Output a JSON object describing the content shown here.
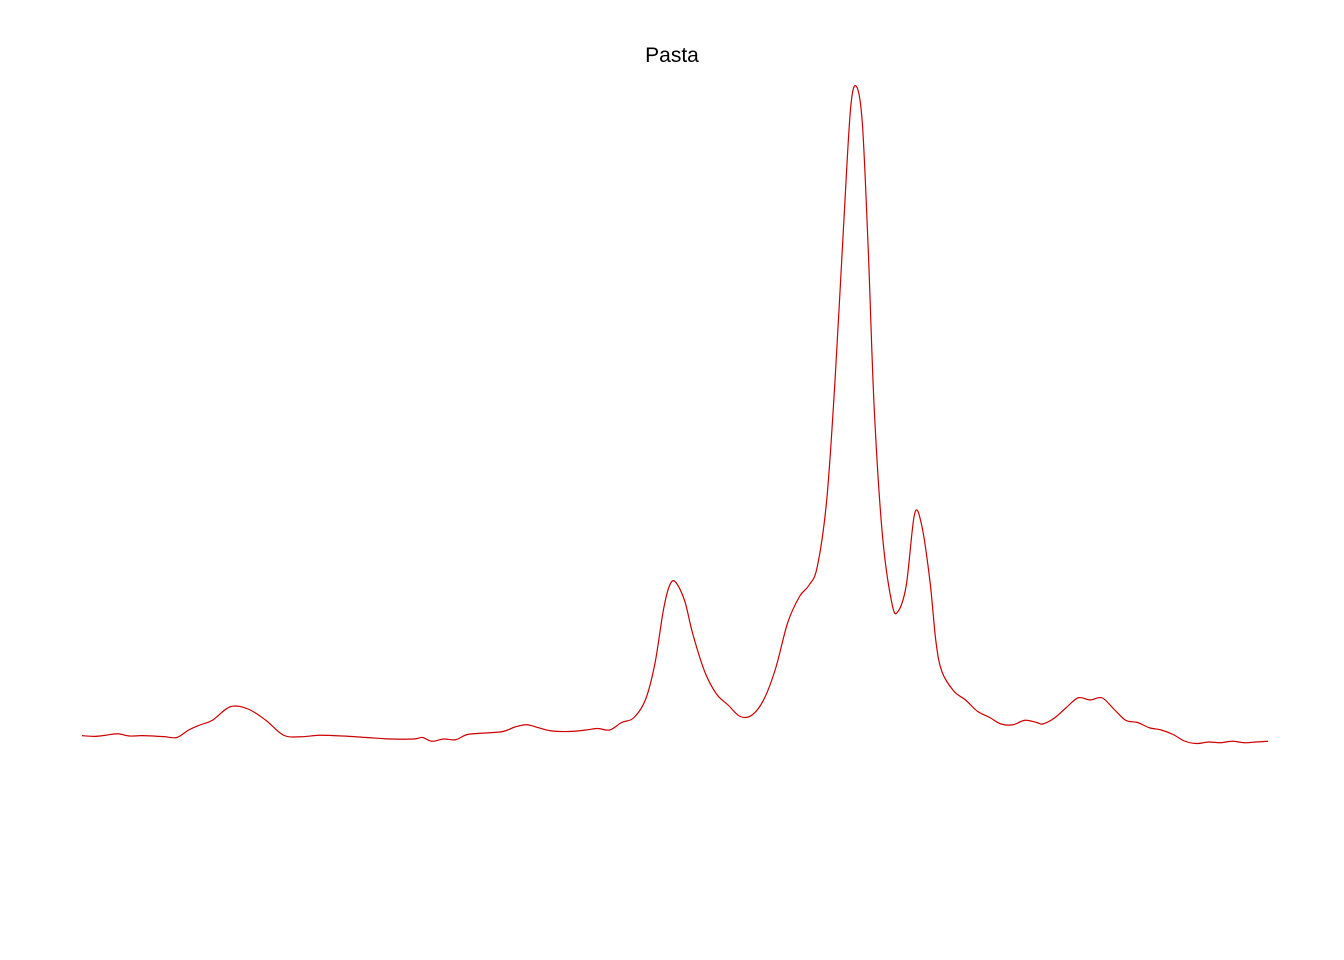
{
  "chart_data": {
    "type": "line",
    "title": "Pasta",
    "xlabel": "",
    "ylabel": "",
    "axes_visible": false,
    "grid": false,
    "legend": "none",
    "xlim": [
      0,
      100
    ],
    "ylim": [
      0,
      100
    ],
    "series": [
      {
        "color": "#cc0000",
        "points": [
          [
            0.0,
            0.45
          ],
          [
            1.0,
            0.35
          ],
          [
            2.0,
            0.5
          ],
          [
            3.0,
            0.7
          ],
          [
            4.0,
            0.4
          ],
          [
            5.0,
            0.45
          ],
          [
            6.0,
            0.4
          ],
          [
            7.0,
            0.3
          ],
          [
            8.0,
            0.2
          ],
          [
            9.0,
            1.2
          ],
          [
            10.0,
            1.9
          ],
          [
            11.0,
            2.5
          ],
          [
            12.5,
            4.3
          ],
          [
            14.0,
            4.0
          ],
          [
            15.5,
            2.5
          ],
          [
            17.0,
            0.5
          ],
          [
            18.5,
            0.3
          ],
          [
            20.0,
            0.5
          ],
          [
            22.0,
            0.4
          ],
          [
            24.0,
            0.2
          ],
          [
            26.0,
            0.0
          ],
          [
            28.0,
            0.0
          ],
          [
            28.7,
            0.2
          ],
          [
            29.5,
            -0.3
          ],
          [
            30.5,
            0.0
          ],
          [
            31.5,
            -0.1
          ],
          [
            32.5,
            0.6
          ],
          [
            34.0,
            0.8
          ],
          [
            35.5,
            1.0
          ],
          [
            36.5,
            1.6
          ],
          [
            37.5,
            1.9
          ],
          [
            38.5,
            1.5
          ],
          [
            39.5,
            1.1
          ],
          [
            41.0,
            1.0
          ],
          [
            42.5,
            1.2
          ],
          [
            43.5,
            1.4
          ],
          [
            44.5,
            1.2
          ],
          [
            45.5,
            2.2
          ],
          [
            46.5,
            2.8
          ],
          [
            47.5,
            5.2
          ],
          [
            48.3,
            10.0
          ],
          [
            49.0,
            17.0
          ],
          [
            49.5,
            20.3
          ],
          [
            50.0,
            21.0
          ],
          [
            50.8,
            18.5
          ],
          [
            51.5,
            14.0
          ],
          [
            52.5,
            9.0
          ],
          [
            53.5,
            6.0
          ],
          [
            54.5,
            4.5
          ],
          [
            55.5,
            3.0
          ],
          [
            56.5,
            3.2
          ],
          [
            57.5,
            5.3
          ],
          [
            58.5,
            9.5
          ],
          [
            59.5,
            15.5
          ],
          [
            60.5,
            19.0
          ],
          [
            61.3,
            20.5
          ],
          [
            62.0,
            23.0
          ],
          [
            62.8,
            32.0
          ],
          [
            63.5,
            48.0
          ],
          [
            64.2,
            68.0
          ],
          [
            64.8,
            84.0
          ],
          [
            65.3,
            87.0
          ],
          [
            65.8,
            82.0
          ],
          [
            66.3,
            65.0
          ],
          [
            66.8,
            44.0
          ],
          [
            67.5,
            27.0
          ],
          [
            68.3,
            18.0
          ],
          [
            68.8,
            17.0
          ],
          [
            69.5,
            20.5
          ],
          [
            70.2,
            30.0
          ],
          [
            70.8,
            28.5
          ],
          [
            71.5,
            21.0
          ],
          [
            72.0,
            13.0
          ],
          [
            72.5,
            9.0
          ],
          [
            73.5,
            6.4
          ],
          [
            74.5,
            5.2
          ],
          [
            75.5,
            3.7
          ],
          [
            76.5,
            2.9
          ],
          [
            77.5,
            2.0
          ],
          [
            78.5,
            1.9
          ],
          [
            79.5,
            2.5
          ],
          [
            80.5,
            2.2
          ],
          [
            81.0,
            2.0
          ],
          [
            82.0,
            2.8
          ],
          [
            83.0,
            4.2
          ],
          [
            84.0,
            5.5
          ],
          [
            85.0,
            5.2
          ],
          [
            86.0,
            5.5
          ],
          [
            87.0,
            4.0
          ],
          [
            88.0,
            2.5
          ],
          [
            89.0,
            2.2
          ],
          [
            90.0,
            1.5
          ],
          [
            91.0,
            1.2
          ],
          [
            92.0,
            0.6
          ],
          [
            93.0,
            -0.3
          ],
          [
            94.0,
            -0.6
          ],
          [
            95.0,
            -0.4
          ],
          [
            96.0,
            -0.5
          ],
          [
            97.0,
            -0.3
          ],
          [
            98.0,
            -0.5
          ],
          [
            99.0,
            -0.4
          ],
          [
            100.0,
            -0.3
          ]
        ]
      }
    ]
  }
}
